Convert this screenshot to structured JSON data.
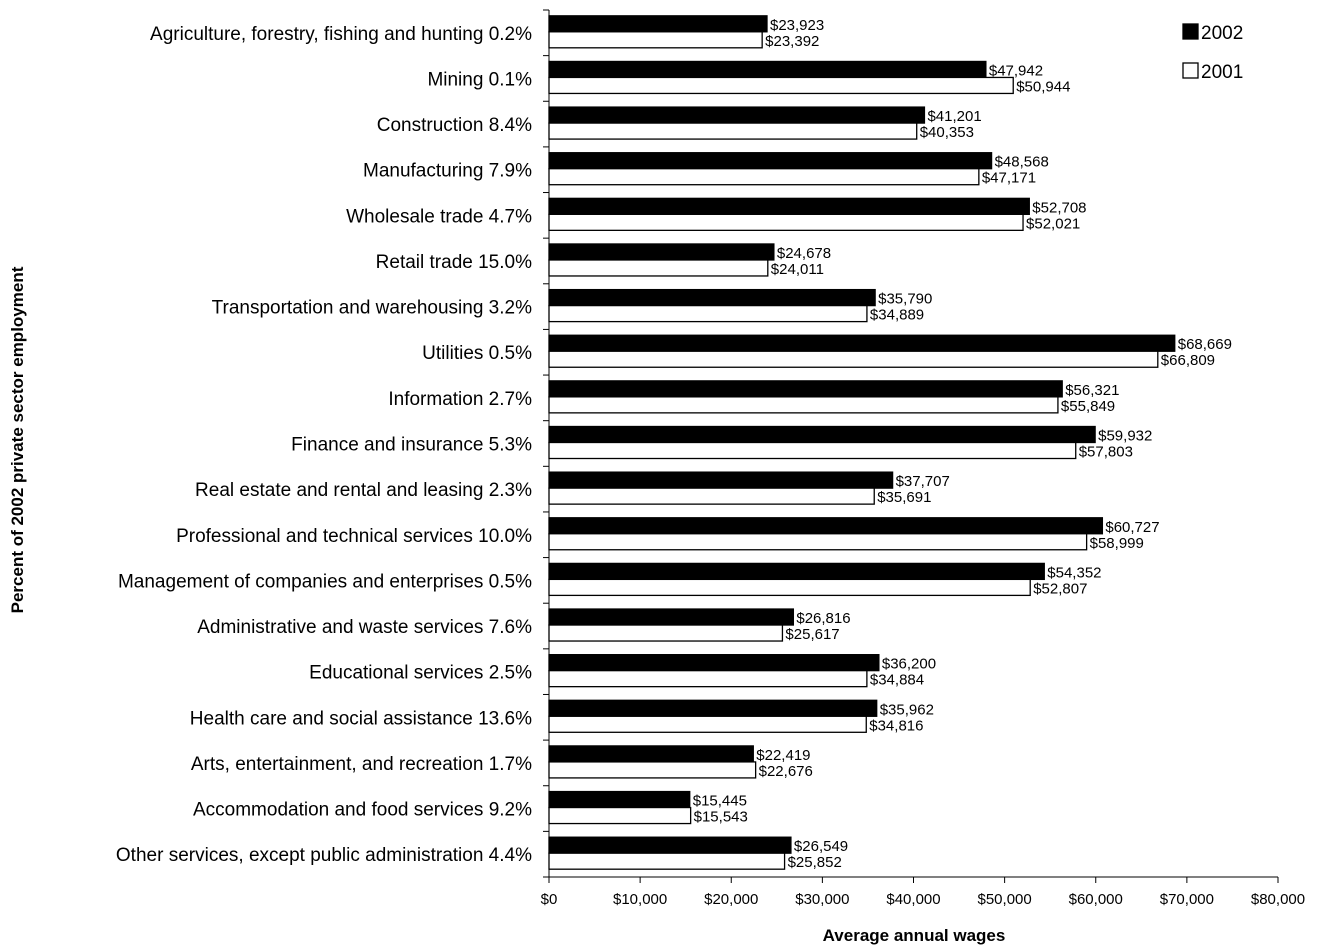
{
  "chart_data": {
    "type": "bar",
    "orientation": "horizontal",
    "xlabel": "Average annual wages",
    "ylabel": "Percent of 2002 private sector employment",
    "xlim": [
      0,
      80000
    ],
    "xticks": [
      "$0",
      "$10,000",
      "$20,000",
      "$30,000",
      "$40,000",
      "$50,000",
      "$60,000",
      "$70,000",
      "$80,000"
    ],
    "grid": false,
    "legend_position": "top-right",
    "categories": [
      "Agriculture, forestry, fishing and hunting 0.2%",
      "Mining 0.1%",
      "Construction 8.4%",
      "Manufacturing 7.9%",
      "Wholesale trade 4.7%",
      "Retail trade 15.0%",
      "Transportation and warehousing 3.2%",
      "Utilities 0.5%",
      "Information 2.7%",
      "Finance and insurance 5.3%",
      "Real estate and rental and leasing 2.3%",
      "Professional and technical services 10.0%",
      "Management of companies and enterprises 0.5%",
      "Administrative and waste services 7.6%",
      "Educational services 2.5%",
      "Health care and social assistance 13.6%",
      "Arts, entertainment, and recreation 1.7%",
      "Accommodation and food services 9.2%",
      "Other services, except public administration 4.4%"
    ],
    "series": [
      {
        "name": "2002",
        "color": "#000000",
        "values": [
          23923,
          47942,
          41201,
          48568,
          52708,
          24678,
          35790,
          68669,
          56321,
          59932,
          37707,
          60727,
          54352,
          26816,
          36200,
          35962,
          22419,
          15445,
          26549
        ],
        "labels": [
          "$23,923",
          "$47,942",
          "$41,201",
          "$48,568",
          "$52,708",
          "$24,678",
          "$35,790",
          "$68,669",
          "$56,321",
          "$59,932",
          "$37,707",
          "$60,727",
          "$54,352",
          "$26,816",
          "$36,200",
          "$35,962",
          "$22,419",
          "$15,445",
          "$26,549"
        ]
      },
      {
        "name": "2001",
        "color": "#ffffff",
        "values": [
          23392,
          50944,
          40353,
          47171,
          52021,
          24011,
          34889,
          66809,
          55849,
          57803,
          35691,
          58999,
          52807,
          25617,
          34884,
          34816,
          22676,
          15543,
          25852
        ],
        "labels": [
          "$23,392",
          "$50,944",
          "$40,353",
          "$47,171",
          "$52,021",
          "$24,011",
          "$34,889",
          "$66,809",
          "$55,849",
          "$57,803",
          "$35,691",
          "$58,999",
          "$52,807",
          "$25,617",
          "$34,884",
          "$34,816",
          "$22,676",
          "$15,543",
          "$25,852"
        ]
      }
    ]
  }
}
